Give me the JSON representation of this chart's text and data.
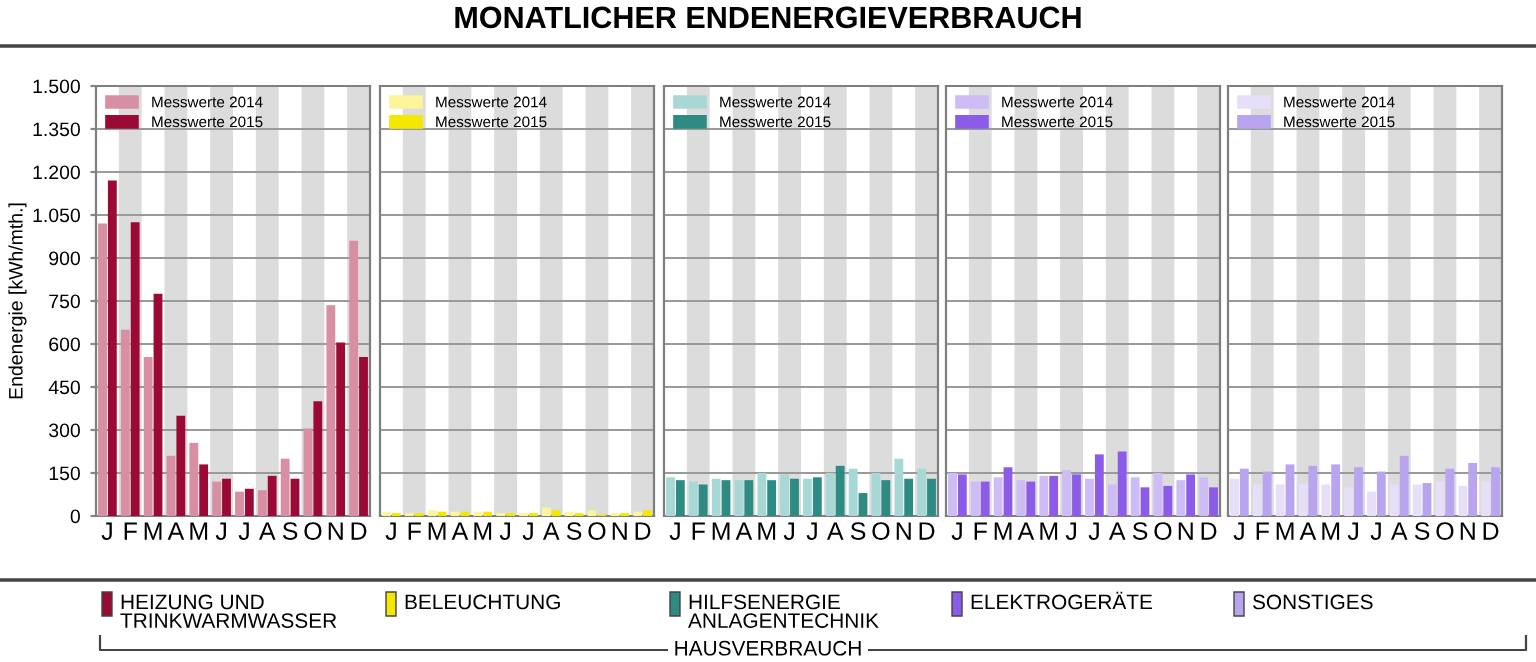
{
  "chart_data": [
    {
      "type": "bar",
      "ylabel": "Endenergie [kWh/mth.]",
      "xlabel": "HEIZUNG UND\nTRINKWARMWASSER",
      "categories": [
        "J",
        "F",
        "M",
        "A",
        "M",
        "J",
        "J",
        "A",
        "S",
        "O",
        "N",
        "D"
      ],
      "series": [
        {
          "name": "Messwerte 2014",
          "color": "#d88ea3",
          "values": [
            1020,
            650,
            555,
            210,
            255,
            120,
            85,
            90,
            200,
            305,
            735,
            960
          ]
        },
        {
          "name": "Messwerte 2015",
          "color": "#9b0a34",
          "values": [
            1170,
            1025,
            775,
            350,
            180,
            130,
            95,
            140,
            130,
            400,
            605,
            555
          ]
        }
      ],
      "ylim": [
        0,
        1500
      ],
      "yticks": [
        0,
        150,
        300,
        450,
        600,
        750,
        900,
        {
          "value": 1050,
          "label": "1.050"
        },
        {
          "value": 1200,
          "label": "1.200"
        },
        {
          "value": 1350,
          "label": "1.350"
        },
        {
          "value": 1500,
          "label": "1.500"
        }
      ],
      "grid": "y",
      "legend": "top left"
    },
    {
      "type": "bar",
      "xlabel": "BELEUCHTUNG",
      "categories": [
        "J",
        "F",
        "M",
        "A",
        "M",
        "J",
        "J",
        "A",
        "S",
        "O",
        "N",
        "D"
      ],
      "series": [
        {
          "name": "Messwerte 2014",
          "color": "#fdf59a",
          "values": [
            15,
            10,
            20,
            15,
            15,
            10,
            10,
            30,
            15,
            20,
            10,
            15
          ]
        },
        {
          "name": "Messwerte 2015",
          "color": "#f5e800",
          "values": [
            10,
            10,
            15,
            15,
            15,
            10,
            10,
            20,
            10,
            5,
            10,
            20
          ]
        }
      ],
      "ylim": [
        0,
        1500
      ],
      "yticks": [
        0,
        150,
        300,
        450,
        600,
        750,
        900,
        1050,
        1200,
        1350,
        1500
      ],
      "grid": "y",
      "legend": "top left",
      "tick_labels": "x"
    },
    {
      "type": "bar",
      "title": "MONATLICHER ENDENERGIEVERBRAUCH",
      "annotations": [
        "HAUSVERBRAUCH"
      ],
      "xlabel": "HILFSENERGIE\nANLAGENTECHNIK",
      "categories": [
        "J",
        "F",
        "M",
        "A",
        "M",
        "J",
        "J",
        "A",
        "S",
        "O",
        "N",
        "D"
      ],
      "series": [
        {
          "name": "Messwerte 2014",
          "color": "#a8d8d6",
          "values": [
            135,
            120,
            130,
            125,
            150,
            145,
            130,
            150,
            165,
            150,
            200,
            165
          ]
        },
        {
          "name": "Messwerte 2015",
          "color": "#2e8b84",
          "values": [
            125,
            110,
            125,
            125,
            125,
            130,
            135,
            175,
            80,
            125,
            130,
            130
          ]
        }
      ],
      "ylim": [
        0,
        1500
      ],
      "yticks": [
        0,
        150,
        300,
        450,
        600,
        750,
        900,
        1050,
        1200,
        1350,
        1500
      ],
      "grid": "y",
      "legend": "top left",
      "tick_labels": "x"
    },
    {
      "type": "bar",
      "xlabel": "ELEKTROGERÄTE",
      "categories": [
        "J",
        "F",
        "M",
        "A",
        "M",
        "J",
        "J",
        "A",
        "S",
        "O",
        "N",
        "D"
      ],
      "series": [
        {
          "name": "Messwerte 2014",
          "color": "#cdbcf5",
          "values": [
            150,
            120,
            135,
            125,
            140,
            160,
            130,
            110,
            135,
            150,
            125,
            135
          ]
        },
        {
          "name": "Messwerte 2015",
          "color": "#8c5ce8",
          "values": [
            145,
            120,
            170,
            120,
            140,
            145,
            215,
            225,
            100,
            105,
            145,
            100
          ]
        }
      ],
      "ylim": [
        0,
        1500
      ],
      "yticks": [
        0,
        150,
        300,
        450,
        600,
        750,
        900,
        1050,
        1200,
        1350,
        1500
      ],
      "grid": "y",
      "legend": "top left",
      "tick_labels": "x"
    },
    {
      "type": "bar",
      "xlabel": "SONSTIGES",
      "categories": [
        "J",
        "F",
        "M",
        "A",
        "M",
        "J",
        "J",
        "A",
        "S",
        "O",
        "N",
        "D"
      ],
      "series": [
        {
          "name": "Messwerte 2014",
          "color": "#e6dff7",
          "values": [
            130,
            110,
            110,
            110,
            110,
            100,
            85,
            110,
            110,
            120,
            105,
            120
          ]
        },
        {
          "name": "Messwerte 2015",
          "color": "#b9a5ef",
          "values": [
            165,
            155,
            180,
            175,
            180,
            170,
            155,
            210,
            115,
            165,
            185,
            170
          ]
        }
      ],
      "ylim": [
        0,
        1500
      ],
      "yticks": [
        0,
        150,
        300,
        450,
        600,
        750,
        900,
        1050,
        1200,
        1350,
        1500
      ],
      "grid": "y",
      "legend": "top left",
      "tick_labels": "x"
    }
  ]
}
